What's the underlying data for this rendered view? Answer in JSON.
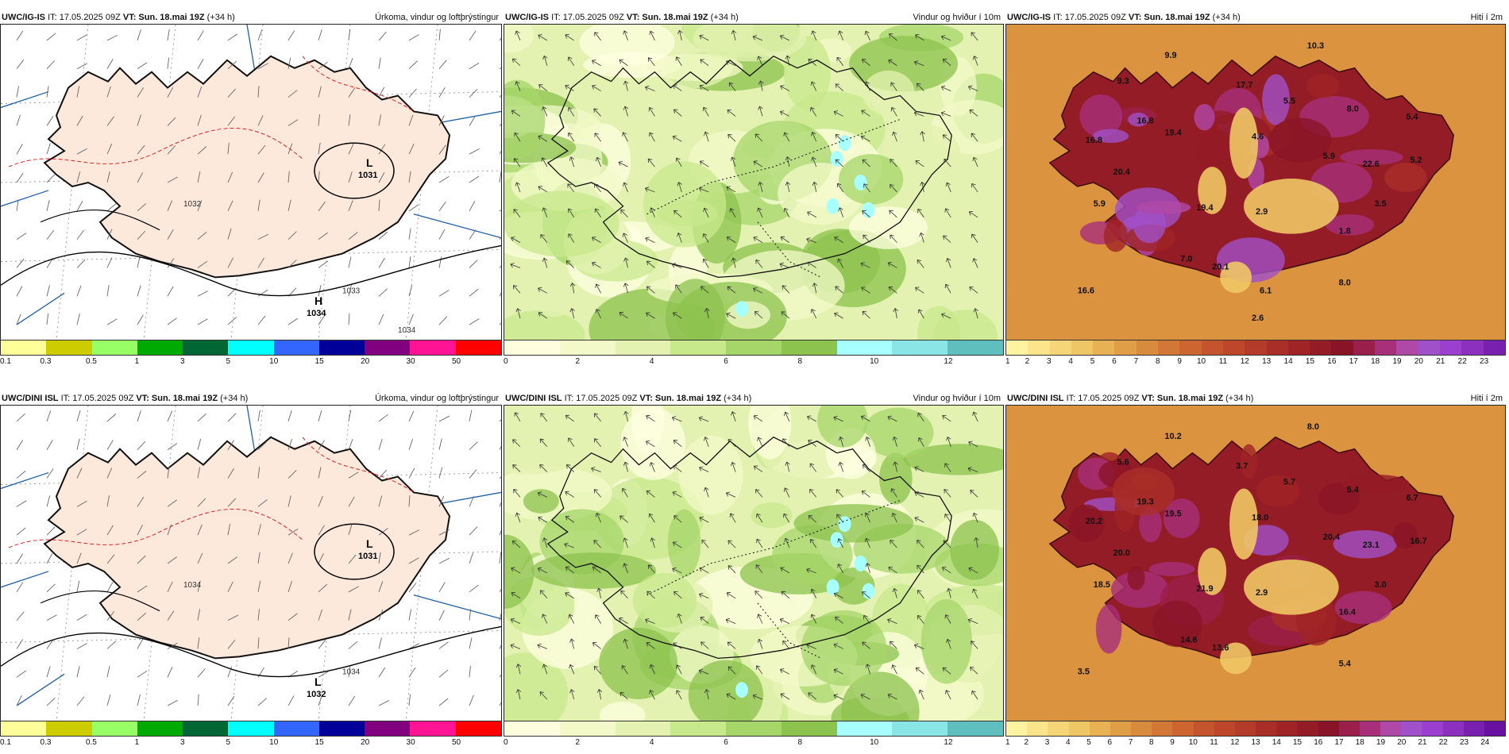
{
  "rows": [
    {
      "model": "UWC/IG-IS",
      "issue_time": "IT: 17.05.2025 09Z",
      "valid_prefix": "VT:",
      "valid_time": "Sun. 18.mai 19Z",
      "lead": "(+34 h)",
      "panels": [
        {
          "type": "precip",
          "title": "Úrkoma, vindur og loftþrýstingur",
          "ticks": [
            "0.1",
            "0.3",
            "0.5",
            "1",
            "3",
            "5",
            "10",
            "15",
            "20",
            "30",
            "50"
          ],
          "colors": [
            "#ffff99",
            "#cccc00",
            "#99ff66",
            "#00aa00",
            "#006633",
            "#00ffff",
            "#3366ff",
            "#000099",
            "#800080",
            "#ff1493",
            "#ff0000"
          ],
          "pressure_labels": [
            {
              "symbol": "L",
              "value": "1031"
            },
            {
              "symbol": "H",
              "value": "1034"
            }
          ],
          "isobar_labels": [
            "1032",
            "1033",
            "1034"
          ]
        },
        {
          "type": "wind",
          "title": "Vindur og hviður í 10m",
          "ticks": [
            "0",
            "2",
            "4",
            "6",
            "8",
            "10",
            "12"
          ],
          "colors": [
            "#ffffe0",
            "#f3f9c8",
            "#e3f2b0",
            "#c8e88c",
            "#a6d66a",
            "#8cc24e",
            "#a8ffff",
            "#8ae6e6",
            "#5fbfbf"
          ]
        },
        {
          "type": "temp",
          "title": "Hiti í 2m",
          "ticks": [
            "1",
            "2",
            "3",
            "4",
            "5",
            "6",
            "7",
            "8",
            "9",
            "10",
            "11",
            "12",
            "13",
            "14",
            "15",
            "16",
            "17",
            "18",
            "19",
            "20",
            "21",
            "22",
            "23"
          ],
          "colors": [
            "#fff3a0",
            "#fbe48a",
            "#f5d577",
            "#efc665",
            "#e8b254",
            "#e09f47",
            "#d98b3d",
            "#d27735",
            "#cc6530",
            "#c4542d",
            "#bd462b",
            "#b43a2a",
            "#aa2e28",
            "#a02426",
            "#941c26",
            "#8a1427",
            "#9a1f4a",
            "#a8307a",
            "#b048a8",
            "#a050c8",
            "#9a3fd0",
            "#8c30c0",
            "#7a20b0"
          ],
          "values": [
            "9.9",
            "10.3",
            "9.3",
            "16.8",
            "17.7",
            "19.4",
            "5.5",
            "8.0",
            "5.4",
            "16.8",
            "4.6",
            "20.4",
            "5.9",
            "22.6",
            "5.2",
            "5.9",
            "19.4",
            "2.9",
            "3.5",
            "1.8",
            "7.0",
            "20.1",
            "8.0",
            "16.6",
            "6.1",
            "2.6"
          ]
        }
      ]
    },
    {
      "model": "UWC/DINI ISL",
      "issue_time": "IT: 17.05.2025 09Z",
      "valid_prefix": "VT:",
      "valid_time": "Sun. 18.mai 19Z",
      "lead": "(+34 h)",
      "panels": [
        {
          "type": "precip",
          "title": "Úrkoma, vindur og loftþrýstingur",
          "ticks": [
            "0.1",
            "0.3",
            "0.5",
            "1",
            "3",
            "5",
            "10",
            "15",
            "20",
            "30",
            "50"
          ],
          "colors": [
            "#ffff99",
            "#cccc00",
            "#99ff66",
            "#00aa00",
            "#006633",
            "#00ffff",
            "#3366ff",
            "#000099",
            "#800080",
            "#ff1493",
            "#ff0000"
          ],
          "pressure_labels": [
            {
              "symbol": "L",
              "value": "1031"
            },
            {
              "symbol": "L",
              "value": "1032"
            }
          ],
          "isobar_labels": [
            "1034",
            "1034"
          ]
        },
        {
          "type": "wind",
          "title": "Vindur og hviður í 10m",
          "ticks": [
            "0",
            "2",
            "4",
            "6",
            "8",
            "10",
            "12"
          ],
          "colors": [
            "#ffffe0",
            "#f3f9c8",
            "#e3f2b0",
            "#c8e88c",
            "#a6d66a",
            "#8cc24e",
            "#a8ffff",
            "#8ae6e6",
            "#5fbfbf"
          ]
        },
        {
          "type": "temp",
          "title": "Hiti í 2m",
          "ticks": [
            "1",
            "2",
            "3",
            "4",
            "5",
            "6",
            "7",
            "8",
            "9",
            "10",
            "11",
            "12",
            "13",
            "14",
            "15",
            "16",
            "17",
            "18",
            "19",
            "20",
            "21",
            "22",
            "23",
            "24"
          ],
          "colors": [
            "#fff3a0",
            "#fbe48a",
            "#f5d577",
            "#efc665",
            "#e8b254",
            "#e09f47",
            "#d98b3d",
            "#d27735",
            "#cc6530",
            "#c4542d",
            "#bd462b",
            "#b43a2a",
            "#aa2e28",
            "#a02426",
            "#941c26",
            "#8a1427",
            "#9a1f4a",
            "#a8307a",
            "#b048a8",
            "#a050c8",
            "#9a3fd0",
            "#8c30c0",
            "#7a20b0",
            "#6a10a0"
          ],
          "values": [
            "10.2",
            "8.0",
            "5.6",
            "19.3",
            "3.7",
            "19.5",
            "5.7",
            "5.4",
            "6.7",
            "20.2",
            "18.0",
            "20.0",
            "20.4",
            "23.1",
            "16.7",
            "18.5",
            "21.9",
            "2.9",
            "3.0",
            "16.4",
            "14.6",
            "13.6",
            "5.4",
            "3.5"
          ]
        }
      ]
    }
  ]
}
